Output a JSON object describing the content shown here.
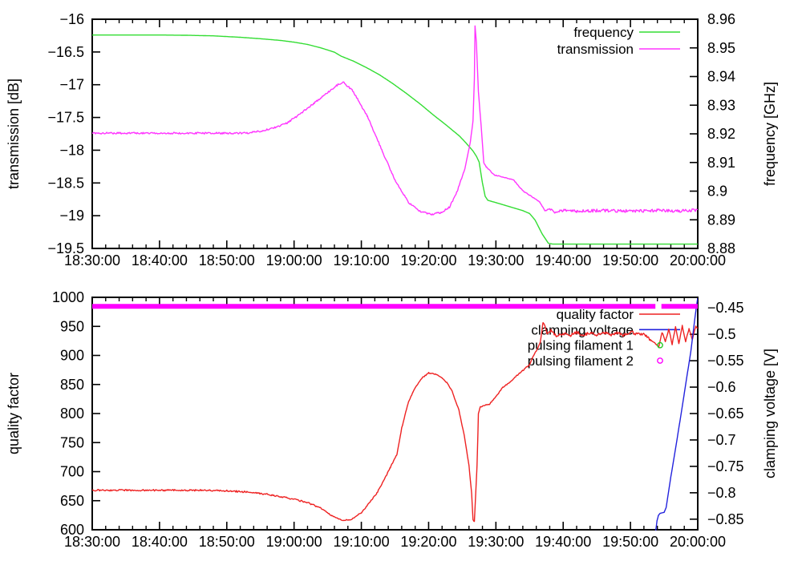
{
  "chart_data": [
    {
      "type": "line",
      "panel": "top",
      "x_axis": {
        "range_minutes": [
          0,
          90
        ],
        "tick_minutes": [
          0,
          10,
          20,
          30,
          40,
          50,
          60,
          70,
          80,
          90
        ],
        "tick_labels": [
          "18:30:00",
          "18:40:00",
          "18:50:00",
          "19:00:00",
          "19:10:00",
          "19:20:00",
          "19:30:00",
          "19:40:00",
          "19:50:00",
          "20:00:00"
        ],
        "minor_step_minutes": 2
      },
      "y_left": {
        "title": "transmission [dB]",
        "range": [
          -19.5,
          -16
        ],
        "tick_values": [
          -16,
          -16.5,
          -17,
          -17.5,
          -18,
          -18.5,
          -19,
          -19.5
        ],
        "tick_labels": [
          "−16",
          "−16.5",
          "−17",
          "−17.5",
          "−18",
          "−18.5",
          "−19",
          "−19.5"
        ]
      },
      "y_right": {
        "title": "frequency [GHz]",
        "range": [
          8.88,
          8.96
        ],
        "tick_values": [
          8.96,
          8.95,
          8.94,
          8.93,
          8.92,
          8.91,
          8.9,
          8.89,
          8.88
        ],
        "tick_labels": [
          "8.96",
          "8.95",
          "8.94",
          "8.93",
          "8.92",
          "8.91",
          "8.9",
          "8.89",
          "8.88"
        ]
      },
      "legend": [
        {
          "label": "frequency",
          "series": "frequency"
        },
        {
          "label": "transmission",
          "series": "transmission"
        }
      ],
      "series": [
        {
          "name": "frequency",
          "axis": "right",
          "style": "line",
          "color": "#33dd33",
          "width": 1.4,
          "points": [
            [
              0,
              8.9545
            ],
            [
              10,
              8.9545
            ],
            [
              14,
              8.9544
            ],
            [
              18,
              8.9542
            ],
            [
              22,
              8.9537
            ],
            [
              25,
              8.9532
            ],
            [
              28,
              8.9526
            ],
            [
              30,
              8.952
            ],
            [
              32,
              8.9512
            ],
            [
              34,
              8.95
            ],
            [
              36,
              8.9485
            ],
            [
              37,
              8.9471
            ],
            [
              38.7,
              8.9455
            ],
            [
              40.7,
              8.9432
            ],
            [
              42.7,
              8.9406
            ],
            [
              44.7,
              8.9375
            ],
            [
              46.7,
              8.9341
            ],
            [
              48.7,
              8.9305
            ],
            [
              50.7,
              8.9266
            ],
            [
              52.7,
              8.9229
            ],
            [
              54.6,
              8.9192
            ],
            [
              55.6,
              8.9167
            ],
            [
              56.6,
              8.914
            ],
            [
              57.1,
              8.9122
            ],
            [
              57.5,
              8.9102
            ],
            [
              58,
              8.9028
            ],
            [
              58.4,
              8.8982
            ],
            [
              58.8,
              8.8968
            ],
            [
              60,
              8.896
            ],
            [
              62,
              8.8946
            ],
            [
              64,
              8.8932
            ],
            [
              65,
              8.8922
            ],
            [
              65.8,
              8.89
            ],
            [
              66.9,
              8.885
            ],
            [
              67.8,
              8.8818
            ],
            [
              68.5,
              8.8815
            ],
            [
              90,
              8.8815
            ]
          ]
        },
        {
          "name": "transmission",
          "axis": "left",
          "style": "line",
          "color": "#ff35ff",
          "width": 1.4,
          "noise_segments": [
            [
              0,
              55,
              0.013
            ],
            [
              55,
              68,
              0.006
            ],
            [
              68,
              90,
              0.022
            ]
          ],
          "noise_seed": 7,
          "points": [
            [
              0,
              -17.74
            ],
            [
              23,
              -17.74
            ],
            [
              25,
              -17.71
            ],
            [
              27,
              -17.66
            ],
            [
              29,
              -17.58
            ],
            [
              31,
              -17.44
            ],
            [
              33,
              -17.28
            ],
            [
              35,
              -17.12
            ],
            [
              36.3,
              -17.01
            ],
            [
              37.3,
              -16.96
            ],
            [
              38.7,
              -17.09
            ],
            [
              40.9,
              -17.48
            ],
            [
              43.1,
              -18.01
            ],
            [
              45.1,
              -18.48
            ],
            [
              47.1,
              -18.81
            ],
            [
              48.7,
              -18.93
            ],
            [
              50.3,
              -18.98
            ],
            [
              51.9,
              -18.95
            ],
            [
              53.1,
              -18.87
            ],
            [
              54.2,
              -18.64
            ],
            [
              55.4,
              -18.28
            ],
            [
              56.2,
              -17.87
            ],
            [
              56.6,
              -17.55
            ],
            [
              56.8,
              -16.9
            ],
            [
              56.9,
              -16.1
            ],
            [
              57.1,
              -16.35
            ],
            [
              57.4,
              -17.1
            ],
            [
              57.8,
              -17.62
            ],
            [
              58.2,
              -18.19
            ],
            [
              58.6,
              -18.26
            ],
            [
              59.8,
              -18.38
            ],
            [
              62.6,
              -18.45
            ],
            [
              64,
              -18.62
            ],
            [
              65.5,
              -18.72
            ],
            [
              66.5,
              -18.79
            ],
            [
              67.3,
              -18.93
            ],
            [
              68,
              -18.89
            ],
            [
              68.8,
              -18.97
            ],
            [
              69.4,
              -18.92
            ],
            [
              72,
              -18.93
            ],
            [
              76,
              -18.92
            ],
            [
              80,
              -18.93
            ],
            [
              84,
              -18.92
            ],
            [
              87,
              -18.93
            ],
            [
              90,
              -18.91
            ]
          ]
        }
      ]
    },
    {
      "type": "line",
      "panel": "bottom",
      "x_axis": {
        "range_minutes": [
          0,
          90
        ],
        "tick_minutes": [
          0,
          10,
          20,
          30,
          40,
          50,
          60,
          70,
          80,
          90
        ],
        "tick_labels": [
          "18:30:00",
          "18:40:00",
          "18:50:00",
          "19:00:00",
          "19:10:00",
          "19:20:00",
          "19:30:00",
          "19:40:00",
          "19:50:00",
          "20:00:00"
        ],
        "minor_step_minutes": 2
      },
      "y_left": {
        "title": "quality factor",
        "range": [
          600,
          1000
        ],
        "tick_values": [
          1000,
          950,
          900,
          850,
          800,
          750,
          700,
          650,
          600
        ],
        "tick_labels": [
          "1000",
          "950",
          "900",
          "850",
          "800",
          "750",
          "700",
          "650",
          "600"
        ]
      },
      "y_right": {
        "title": "clamping voltage [V]",
        "range": [
          -0.87,
          -0.43
        ],
        "tick_values": [
          -0.45,
          -0.5,
          -0.55,
          -0.6,
          -0.65,
          -0.7,
          -0.75,
          -0.8,
          -0.85
        ],
        "tick_labels": [
          "−0.45",
          "−0.5",
          "−0.55",
          "−0.6",
          "−0.65",
          "−0.7",
          "−0.75",
          "−0.8",
          "−0.85"
        ]
      },
      "legend": [
        {
          "label": "quality factor",
          "series": "quality factor"
        },
        {
          "label": "clamping voltage",
          "series": "clamping voltage"
        },
        {
          "label": "pulsing filament 1",
          "series": "pulsing filament 1"
        },
        {
          "label": "pulsing filament 2",
          "series": "pulsing filament 2"
        }
      ],
      "series": [
        {
          "name": "quality factor",
          "axis": "left",
          "style": "line",
          "color": "#ee2222",
          "width": 1.4,
          "noise_segments": [
            [
              0,
              34,
              1.4
            ],
            [
              34,
              68,
              0.9
            ],
            [
              68,
              83,
              2.4
            ],
            [
              83,
              90,
              1.2
            ]
          ],
          "noise_seed": 3,
          "points": [
            [
              0,
              668
            ],
            [
              17,
              668
            ],
            [
              20,
              667
            ],
            [
              23,
              665
            ],
            [
              26,
              661
            ],
            [
              29,
              655
            ],
            [
              32,
              647
            ],
            [
              34,
              637
            ],
            [
              35.6,
              624
            ],
            [
              37.3,
              616
            ],
            [
              38.5,
              618
            ],
            [
              40,
              629
            ],
            [
              41.3,
              648
            ],
            [
              42.3,
              663
            ],
            [
              43.3,
              684
            ],
            [
              44.3,
              707
            ],
            [
              45.3,
              730
            ],
            [
              46,
              775
            ],
            [
              47,
              820
            ],
            [
              48,
              845
            ],
            [
              49,
              861
            ],
            [
              50,
              870
            ],
            [
              51,
              868
            ],
            [
              52,
              861
            ],
            [
              52.8,
              852
            ],
            [
              53.5,
              838
            ],
            [
              54.5,
              806
            ],
            [
              55.3,
              762
            ],
            [
              56,
              710
            ],
            [
              56.4,
              662
            ],
            [
              56.6,
              617
            ],
            [
              56.8,
              614
            ],
            [
              57.2,
              711
            ],
            [
              57.4,
              800
            ],
            [
              57.7,
              812
            ],
            [
              59,
              816
            ],
            [
              60,
              829
            ],
            [
              61,
              845
            ],
            [
              62,
              853
            ],
            [
              63,
              864
            ],
            [
              64,
              874
            ],
            [
              65,
              884
            ],
            [
              65.4,
              895
            ],
            [
              66,
              908
            ],
            [
              66.6,
              922
            ],
            [
              67,
              957
            ],
            [
              67.3,
              950
            ],
            [
              67.6,
              937
            ],
            [
              68.2,
              943
            ],
            [
              69,
              933
            ],
            [
              70,
              938
            ],
            [
              71,
              934
            ],
            [
              72,
              940
            ],
            [
              73,
              935
            ],
            [
              74,
              939
            ],
            [
              75,
              934
            ],
            [
              76,
              940
            ],
            [
              77,
              935
            ],
            [
              78,
              939
            ],
            [
              79,
              934
            ],
            [
              80,
              941
            ],
            [
              81,
              936
            ],
            [
              82,
              938
            ],
            [
              83,
              926
            ],
            [
              83.8,
              920
            ],
            [
              84.2,
              914
            ],
            [
              84.7,
              940
            ],
            [
              85.2,
              924
            ],
            [
              85.7,
              946
            ],
            [
              86.2,
              919
            ],
            [
              86.7,
              949
            ],
            [
              87.2,
              921
            ],
            [
              87.7,
              951
            ],
            [
              88.2,
              924
            ],
            [
              88.7,
              946
            ],
            [
              89.2,
              927
            ],
            [
              89.7,
              950
            ],
            [
              90,
              947
            ]
          ]
        },
        {
          "name": "clamping voltage",
          "axis": "right",
          "style": "line",
          "color": "#2222dd",
          "width": 1.4,
          "points": [
            [
              83.75,
              -0.872
            ],
            [
              83.95,
              -0.853
            ],
            [
              84.15,
              -0.843
            ],
            [
              84.4,
              -0.839
            ],
            [
              85.0,
              -0.837
            ],
            [
              85.3,
              -0.828
            ],
            [
              86,
              -0.77
            ],
            [
              87,
              -0.693
            ],
            [
              88,
              -0.612
            ],
            [
              89,
              -0.53
            ],
            [
              89.75,
              -0.452
            ],
            [
              90,
              -0.431
            ]
          ]
        },
        {
          "name": "pulsing filament 1",
          "axis": "right",
          "style": "points",
          "color": "#22cc22",
          "width": 1.4,
          "points": []
        },
        {
          "name": "pulsing filament 2",
          "axis": "right",
          "style": "points",
          "color": "#ff00ff",
          "width": 6,
          "points": [
            [
              0,
              -0.447
            ],
            [
              83.7,
              -0.447
            ],
            null,
            [
              84.6,
              -0.447
            ],
            [
              90,
              -0.447
            ]
          ]
        }
      ]
    }
  ]
}
